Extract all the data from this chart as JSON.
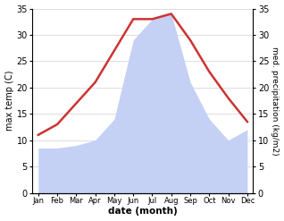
{
  "months": [
    "Jan",
    "Feb",
    "Mar",
    "Apr",
    "May",
    "Jun",
    "Jul",
    "Aug",
    "Sep",
    "Oct",
    "Nov",
    "Dec"
  ],
  "temp": [
    11,
    13,
    17,
    21,
    27,
    33,
    33,
    34,
    29,
    23,
    18,
    13.5
  ],
  "precip": [
    8.5,
    8.5,
    9,
    10,
    14,
    29,
    33,
    34,
    21,
    14,
    10,
    12
  ],
  "temp_color": "#cc3333",
  "precip_fill_color": "#c5d0f5",
  "ylim": [
    0,
    35
  ],
  "yticks": [
    0,
    5,
    10,
    15,
    20,
    25,
    30,
    35
  ],
  "xlabel": "date (month)",
  "ylabel_left": "max temp (C)",
  "ylabel_right": "med. precipitation (kg/m2)",
  "bg_color": "#ffffff",
  "line_width": 1.8
}
